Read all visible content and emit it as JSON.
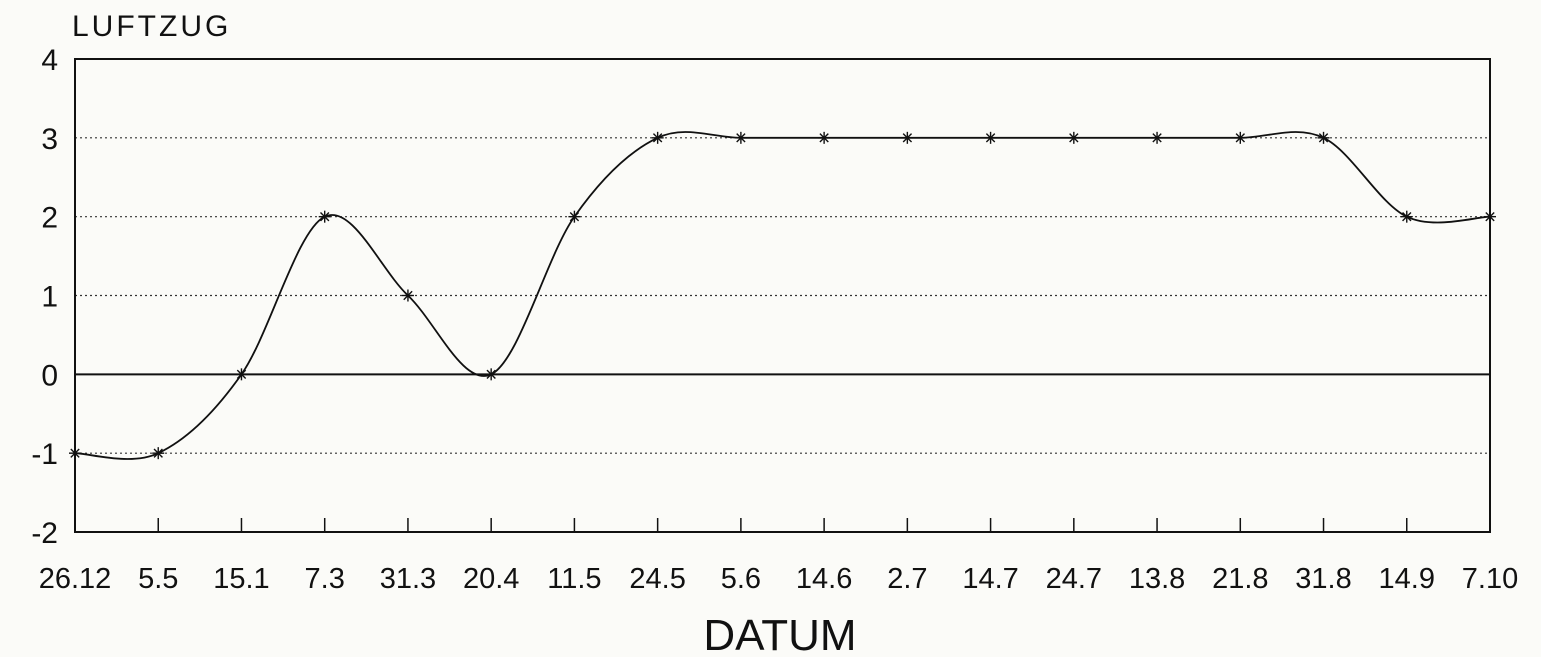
{
  "chart_data": {
    "type": "line",
    "ylabel": "LUFTZUG",
    "xlabel": "DATUM",
    "categories": [
      "26.12",
      "5.5",
      "15.1",
      "7.3",
      "31.3",
      "20.4",
      "11.5",
      "24.5",
      "5.6",
      "14.6",
      "2.7",
      "14.7",
      "24.7",
      "13.8",
      "21.8",
      "31.8",
      "14.9",
      "7.10"
    ],
    "series": [
      {
        "values": [
          -1,
          -1,
          0,
          2,
          1,
          0,
          2,
          3,
          3,
          3,
          3,
          3,
          3,
          3,
          3,
          3,
          2,
          2
        ]
      }
    ],
    "ylim": [
      -2,
      4
    ],
    "yticks": [
      "-2",
      "-1",
      "0",
      "1",
      "2",
      "3",
      "4"
    ],
    "marker": "*",
    "smoothed_curve": true,
    "grid": "horizontal-dotted",
    "zero_line": true
  }
}
